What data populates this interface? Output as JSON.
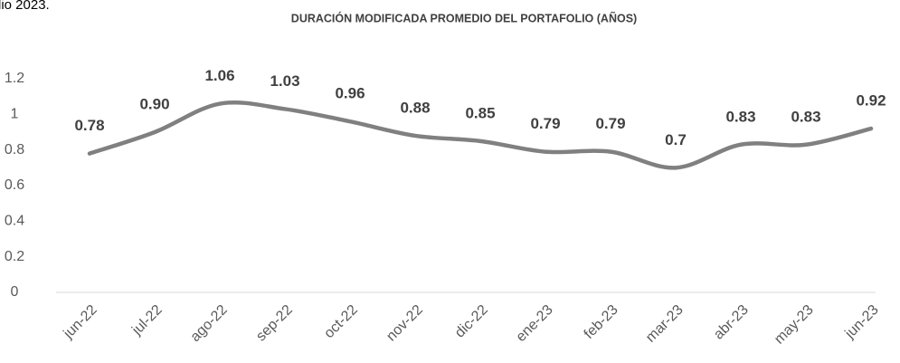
{
  "header_fragment": "lio 2023.",
  "chart_data": {
    "type": "line",
    "title": "DURACIÓN MODIFICADA PROMEDIO DEL PORTAFOLIO (AÑOS)",
    "categories": [
      "jun-22",
      "jul-22",
      "ago-22",
      "sep-22",
      "oct-22",
      "nov-22",
      "dic-22",
      "ene-23",
      "feb-23",
      "mar-23",
      "abr-23",
      "may-23",
      "jun-23"
    ],
    "values": [
      0.78,
      0.9,
      1.06,
      1.03,
      0.96,
      0.88,
      0.85,
      0.79,
      0.79,
      0.7,
      0.83,
      0.83,
      0.92
    ],
    "value_labels": [
      "0.78",
      "0.90",
      "1.06",
      "1.03",
      "0.96",
      "0.88",
      "0.85",
      "0.79",
      "0.79",
      "0.7",
      "0.83",
      "0.83",
      "0.92"
    ],
    "color": "#808080",
    "ylim": [
      0,
      1.2
    ],
    "yticks": [
      0,
      0.2,
      0.4,
      0.6,
      0.8,
      1,
      1.2
    ],
    "grid": false,
    "smooth": true
  }
}
